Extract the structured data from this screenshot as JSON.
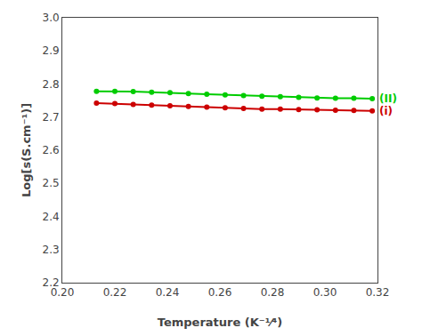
{
  "chart_data": {
    "type": "line",
    "title": "",
    "xlabel": "Temperature (K⁻¹⁄⁴)",
    "ylabel": "Log[s(S.cm⁻¹)]",
    "xlim": [
      0.2,
      0.32
    ],
    "ylim": [
      2.2,
      3.0
    ],
    "xticks": [
      {
        "value": 0.2,
        "label": "0.20"
      },
      0.22,
      0.24,
      0.26,
      0.28,
      {
        "value": 0.3,
        "label": "0.30"
      },
      0.32
    ],
    "yticks": [
      2.2,
      2.3,
      2.4,
      2.5,
      2.6,
      2.7,
      2.8,
      2.9,
      {
        "value": 3.0,
        "label": "3.0"
      }
    ],
    "grid": false,
    "series": [
      {
        "name": "(II)",
        "color": "#00cc00",
        "marker": "circle",
        "x": [
          0.213,
          0.22,
          0.227,
          0.234,
          0.241,
          0.248,
          0.255,
          0.262,
          0.269,
          0.276,
          0.283,
          0.29,
          0.297,
          0.304,
          0.311,
          0.318
        ],
        "values": [
          2.778,
          2.778,
          2.777,
          2.775,
          2.774,
          2.771,
          2.769,
          2.767,
          2.765,
          2.763,
          2.762,
          2.76,
          2.758,
          2.757,
          2.757,
          2.756
        ]
      },
      {
        "name": "(i)",
        "color": "#cc0000",
        "marker": "circle",
        "x": [
          0.213,
          0.22,
          0.227,
          0.234,
          0.241,
          0.248,
          0.255,
          0.262,
          0.269,
          0.276,
          0.283,
          0.29,
          0.297,
          0.304,
          0.311,
          0.318
        ],
        "values": [
          2.742,
          2.741,
          2.738,
          2.736,
          2.734,
          2.732,
          2.73,
          2.728,
          2.726,
          2.724,
          2.724,
          2.723,
          2.722,
          2.721,
          2.72,
          2.719
        ]
      }
    ]
  }
}
